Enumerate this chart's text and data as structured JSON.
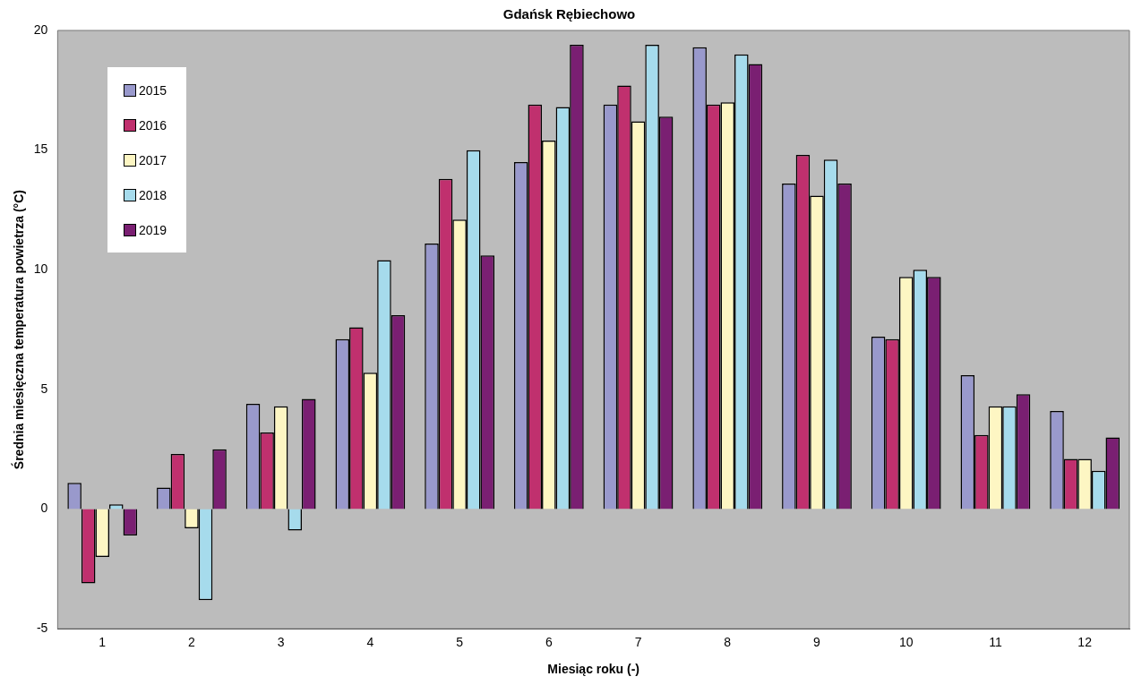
{
  "chart_data": {
    "type": "bar",
    "title": "Gdańsk Rębiechowo",
    "xlabel": "Miesiąc roku (-)",
    "ylabel": "Średnia miesięczna temperatura powietrza (°C)",
    "categories": [
      "1",
      "2",
      "3",
      "4",
      "5",
      "6",
      "7",
      "8",
      "9",
      "10",
      "11",
      "12"
    ],
    "series": [
      {
        "name": "2015",
        "color": "#9999cc",
        "values": [
          1.1,
          0.9,
          4.4,
          7.1,
          11.1,
          14.5,
          16.9,
          19.3,
          13.6,
          7.2,
          5.6,
          4.1
        ]
      },
      {
        "name": "2016",
        "color": "#c0306e",
        "values": [
          -3.1,
          2.3,
          3.2,
          7.6,
          13.8,
          16.9,
          17.7,
          16.9,
          14.8,
          7.1,
          3.1,
          2.1
        ]
      },
      {
        "name": "2017",
        "color": "#fdf6c3",
        "values": [
          -2.0,
          -0.8,
          4.3,
          5.7,
          12.1,
          15.4,
          16.2,
          17.0,
          13.1,
          9.7,
          4.3,
          2.1
        ]
      },
      {
        "name": "2018",
        "color": "#a6dbec",
        "values": [
          0.2,
          -3.8,
          -0.9,
          10.4,
          15.0,
          16.8,
          19.4,
          19.0,
          14.6,
          10.0,
          4.3,
          1.6
        ]
      },
      {
        "name": "2019",
        "color": "#7a1f72",
        "values": [
          -1.1,
          2.5,
          4.6,
          8.1,
          10.6,
          19.4,
          16.4,
          18.6,
          13.6,
          9.7,
          4.8,
          3.0
        ]
      }
    ],
    "ylim": [
      -5,
      20
    ],
    "yticks": [
      -5,
      0,
      5,
      10,
      15,
      20
    ],
    "grid": false,
    "legend": "top left"
  }
}
